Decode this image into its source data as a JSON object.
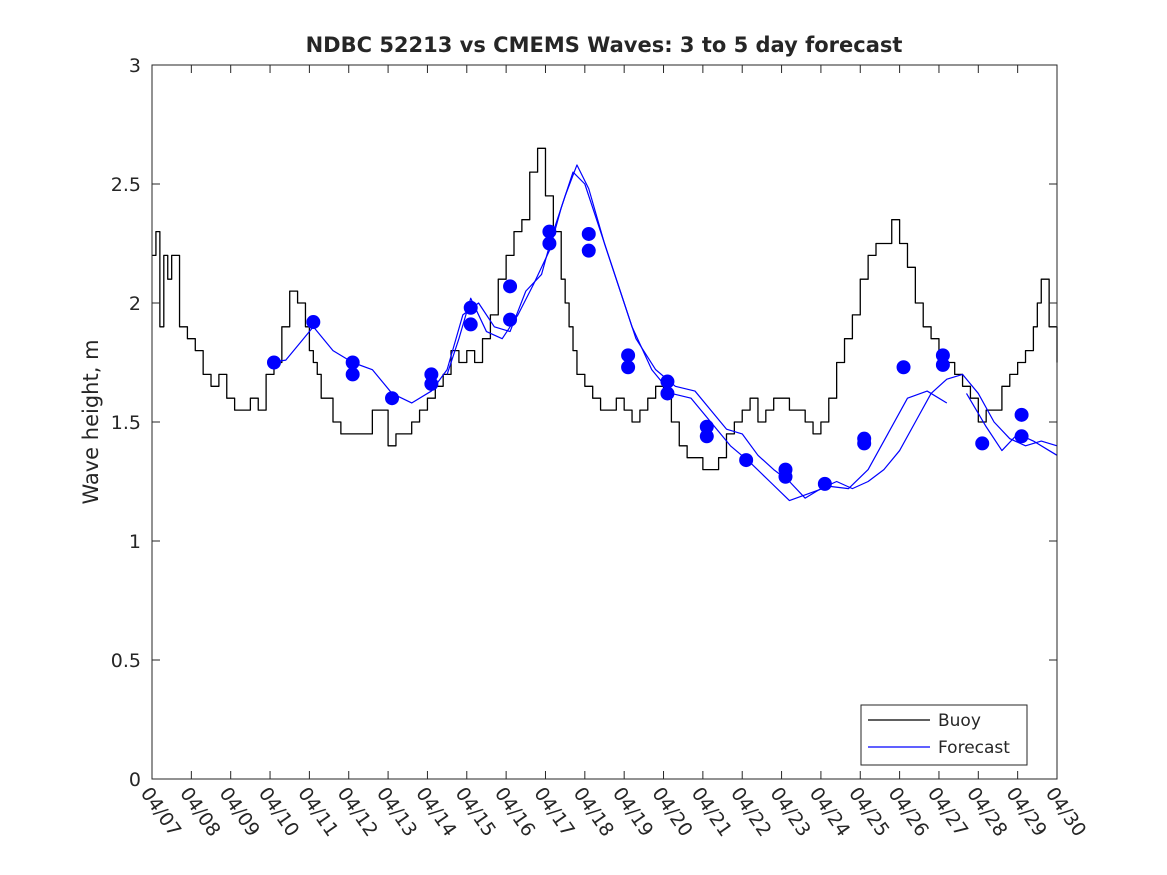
{
  "chart_data": {
    "type": "line",
    "title": "NDBC 52213 vs CMEMS Waves: 3 to 5 day forecast",
    "xlabel": "",
    "ylabel": "Wave height, m",
    "ylim": [
      0,
      3
    ],
    "yticks": [
      "0",
      "0.5",
      "1",
      "1.5",
      "2",
      "2.5",
      "3"
    ],
    "xticks": [
      "04/07",
      "04/08",
      "04/09",
      "04/10",
      "04/11",
      "04/12",
      "04/13",
      "04/14",
      "04/15",
      "04/16",
      "04/17",
      "04/18",
      "04/19",
      "04/20",
      "04/21",
      "04/22",
      "04/23",
      "04/24",
      "04/25",
      "04/26",
      "04/27",
      "04/28",
      "04/29",
      "04/30"
    ],
    "x_unit": "days after 04/07 00:00",
    "legend_position": "bottom-right",
    "grid": false,
    "colors": {
      "buoy": "#000000",
      "forecast": "#0000ff"
    },
    "series": [
      {
        "name": "Buoy",
        "x": [
          0.0,
          0.1,
          0.2,
          0.3,
          0.4,
          0.5,
          0.7,
          0.9,
          1.1,
          1.3,
          1.5,
          1.7,
          1.9,
          2.1,
          2.3,
          2.5,
          2.7,
          2.9,
          3.1,
          3.3,
          3.5,
          3.7,
          3.9,
          4.0,
          4.1,
          4.2,
          4.3,
          4.4,
          4.6,
          4.8,
          5.0,
          5.2,
          5.4,
          5.6,
          5.8,
          6.0,
          6.2,
          6.4,
          6.6,
          6.8,
          7.0,
          7.2,
          7.4,
          7.6,
          7.8,
          8.0,
          8.2,
          8.4,
          8.6,
          8.8,
          9.0,
          9.2,
          9.4,
          9.6,
          9.8,
          10.0,
          10.2,
          10.4,
          10.5,
          10.6,
          10.7,
          10.8,
          10.9,
          11.0,
          11.2,
          11.4,
          11.6,
          11.8,
          12.0,
          12.2,
          12.4,
          12.6,
          12.8,
          13.0,
          13.2,
          13.4,
          13.6,
          13.8,
          14.0,
          14.2,
          14.4,
          14.6,
          14.8,
          15.0,
          15.2,
          15.4,
          15.6,
          15.8,
          16.0,
          16.2,
          16.4,
          16.6,
          16.8,
          17.0,
          17.2,
          17.4,
          17.6,
          17.8,
          18.0,
          18.2,
          18.4,
          18.6,
          18.8,
          19.0,
          19.2,
          19.4,
          19.6,
          19.8,
          20.0,
          20.2,
          20.4,
          20.6,
          20.8,
          21.0,
          21.2,
          21.4,
          21.6,
          21.8,
          22.0,
          22.2,
          22.4,
          22.5,
          22.6,
          22.8,
          23.0
        ],
        "values": [
          2.2,
          2.3,
          1.9,
          2.2,
          2.1,
          2.2,
          1.9,
          1.85,
          1.8,
          1.7,
          1.65,
          1.7,
          1.6,
          1.55,
          1.55,
          1.6,
          1.55,
          1.7,
          1.75,
          1.9,
          2.05,
          2.0,
          1.9,
          1.8,
          1.75,
          1.7,
          1.6,
          1.6,
          1.5,
          1.45,
          1.45,
          1.45,
          1.45,
          1.55,
          1.55,
          1.4,
          1.45,
          1.45,
          1.5,
          1.55,
          1.6,
          1.65,
          1.7,
          1.8,
          1.75,
          1.8,
          1.75,
          1.85,
          1.95,
          2.1,
          2.2,
          2.3,
          2.35,
          2.55,
          2.65,
          2.45,
          2.3,
          2.1,
          2.0,
          1.9,
          1.8,
          1.7,
          1.7,
          1.65,
          1.6,
          1.55,
          1.55,
          1.6,
          1.55,
          1.5,
          1.55,
          1.6,
          1.65,
          1.6,
          1.5,
          1.4,
          1.35,
          1.35,
          1.3,
          1.3,
          1.35,
          1.45,
          1.5,
          1.55,
          1.6,
          1.5,
          1.55,
          1.6,
          1.6,
          1.55,
          1.55,
          1.5,
          1.45,
          1.5,
          1.6,
          1.75,
          1.85,
          1.95,
          2.1,
          2.2,
          2.25,
          2.25,
          2.35,
          2.25,
          2.15,
          2.0,
          1.9,
          1.85,
          1.8,
          1.75,
          1.7,
          1.65,
          1.6,
          1.5,
          1.55,
          1.55,
          1.65,
          1.7,
          1.75,
          1.8,
          1.9,
          2.0,
          2.1,
          1.9,
          1.75
        ]
      },
      {
        "name": "Forecast",
        "x": [
          3.0,
          3.4,
          3.8,
          4.1,
          4.6,
          5.1,
          5.6,
          6.1,
          6.6,
          7.1,
          7.5,
          7.9,
          8.3,
          8.7,
          9.1,
          9.5,
          9.9,
          10.2,
          10.5,
          10.8,
          11.1,
          11.5,
          11.9,
          12.3,
          12.8,
          13.3,
          13.8,
          14.2,
          14.6,
          15.0,
          15.4,
          15.8,
          16.2,
          16.6,
          17.0,
          17.4,
          17.8,
          18.2,
          18.6,
          19.0,
          19.4,
          19.8,
          20.2,
          20.6,
          21.0,
          21.4,
          21.8,
          22.2,
          22.6,
          23.0
        ],
        "values": [
          1.75,
          1.76,
          1.84,
          1.9,
          1.8,
          1.75,
          1.72,
          1.62,
          1.58,
          1.63,
          1.72,
          1.95,
          2.0,
          1.9,
          1.88,
          2.05,
          2.12,
          2.3,
          2.45,
          2.58,
          2.48,
          2.25,
          2.05,
          1.85,
          1.72,
          1.65,
          1.63,
          1.55,
          1.47,
          1.45,
          1.36,
          1.3,
          1.25,
          1.18,
          1.22,
          1.25,
          1.22,
          1.25,
          1.3,
          1.38,
          1.5,
          1.62,
          1.68,
          1.7,
          1.62,
          1.5,
          1.43,
          1.4,
          1.42,
          1.4
        ]
      },
      {
        "name": "",
        "x": [
          7.5,
          7.8,
          8.1,
          8.5,
          8.9,
          9.3,
          9.7,
          10.1,
          10.4,
          10.7,
          11.0,
          11.4,
          11.8,
          12.2,
          12.7,
          13.2,
          13.7,
          14.2,
          14.7,
          15.2,
          15.7,
          16.2,
          16.7,
          17.2,
          17.7,
          18.2,
          18.7,
          19.2,
          19.7,
          20.2
        ],
        "values": [
          1.7,
          1.85,
          2.02,
          1.88,
          1.85,
          1.95,
          2.08,
          2.22,
          2.4,
          2.55,
          2.5,
          2.3,
          2.1,
          1.9,
          1.72,
          1.62,
          1.6,
          1.5,
          1.4,
          1.33,
          1.25,
          1.17,
          1.2,
          1.23,
          1.22,
          1.3,
          1.45,
          1.6,
          1.63,
          1.58
        ]
      },
      {
        "name": "",
        "x": [
          20.7,
          21.2,
          21.6,
          22.0,
          22.4,
          22.8,
          23.0
        ],
        "values": [
          1.62,
          1.48,
          1.38,
          1.45,
          1.42,
          1.38,
          1.36
        ]
      }
    ],
    "forecast_markers": [
      {
        "x": 3.1,
        "y": 1.75
      },
      {
        "x": 4.1,
        "y": 1.92
      },
      {
        "x": 5.1,
        "y": 1.75
      },
      {
        "x": 5.1,
        "y": 1.7
      },
      {
        "x": 6.1,
        "y": 1.6
      },
      {
        "x": 7.1,
        "y": 1.7
      },
      {
        "x": 7.1,
        "y": 1.66
      },
      {
        "x": 8.1,
        "y": 1.98
      },
      {
        "x": 8.1,
        "y": 1.91
      },
      {
        "x": 9.1,
        "y": 2.07
      },
      {
        "x": 9.1,
        "y": 1.93
      },
      {
        "x": 10.1,
        "y": 2.3
      },
      {
        "x": 10.1,
        "y": 2.25
      },
      {
        "x": 11.1,
        "y": 2.29
      },
      {
        "x": 11.1,
        "y": 2.22
      },
      {
        "x": 12.1,
        "y": 1.78
      },
      {
        "x": 12.1,
        "y": 1.73
      },
      {
        "x": 13.1,
        "y": 1.67
      },
      {
        "x": 13.1,
        "y": 1.62
      },
      {
        "x": 14.1,
        "y": 1.48
      },
      {
        "x": 14.1,
        "y": 1.44
      },
      {
        "x": 15.1,
        "y": 1.34
      },
      {
        "x": 16.1,
        "y": 1.3
      },
      {
        "x": 16.1,
        "y": 1.27
      },
      {
        "x": 17.1,
        "y": 1.24
      },
      {
        "x": 18.1,
        "y": 1.43
      },
      {
        "x": 18.1,
        "y": 1.41
      },
      {
        "x": 19.1,
        "y": 1.73
      },
      {
        "x": 20.1,
        "y": 1.78
      },
      {
        "x": 20.1,
        "y": 1.74
      },
      {
        "x": 21.1,
        "y": 1.41
      },
      {
        "x": 22.1,
        "y": 1.53
      },
      {
        "x": 22.1,
        "y": 1.44
      }
    ],
    "legend": [
      "Buoy",
      "Forecast"
    ]
  }
}
